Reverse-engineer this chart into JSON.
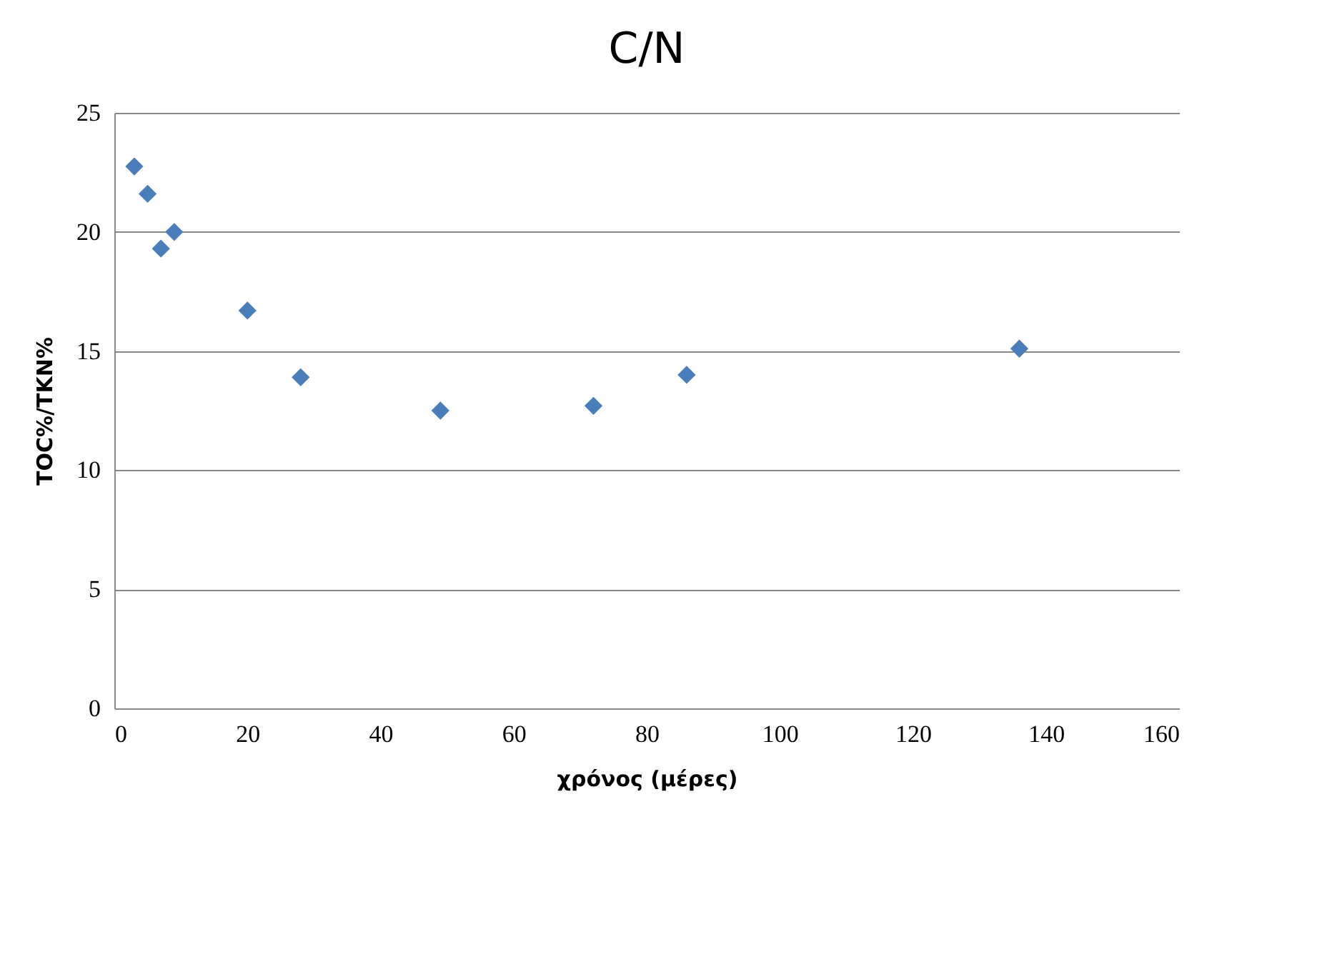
{
  "chart_data": {
    "type": "scatter",
    "title": "C/N",
    "xlabel": "χρόνος (μέρες)",
    "ylabel": "TOC%/TKN%",
    "x": [
      3,
      5,
      7,
      9,
      20,
      28,
      49,
      72,
      86,
      136
    ],
    "series": [
      {
        "color": "#4a7ebb",
        "values": [
          22.75,
          21.6,
          19.3,
          20.0,
          16.7,
          13.9,
          12.5,
          12.7,
          14.0,
          15.1
        ]
      }
    ],
    "xlim": [
      0,
      160
    ],
    "xticks": [
      0,
      20,
      40,
      60,
      80,
      100,
      120,
      140,
      160
    ],
    "ylim": [
      0,
      25
    ],
    "yticks": [
      0,
      5,
      10,
      15,
      20,
      25
    ],
    "grid": "y",
    "marker": "diamond"
  }
}
